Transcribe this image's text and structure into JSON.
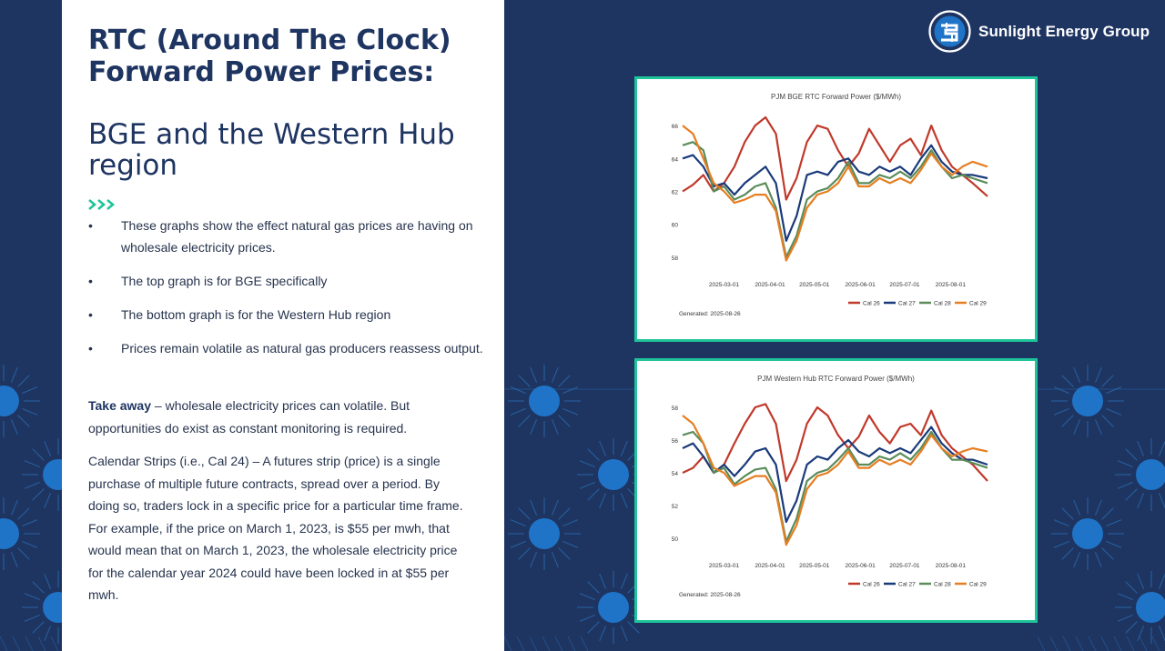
{
  "slide": {
    "title": "RTC (Around The Clock) Forward Power Prices:",
    "subtitle": "BGE and the Western Hub region",
    "bullets": [
      "These graphs show the effect natural gas prices are having on wholesale electricity prices.",
      "The top graph is for BGE specifically",
      "The bottom graph is for the Western Hub region",
      "Prices remain volatile as natural gas producers reassess output."
    ],
    "bullet_marker": "•",
    "takeaway_label": "Take away",
    "takeaway_text": " – wholesale electricity prices can volatile. But opportunities do exist as constant monitoring is required.",
    "calendar_text": "Calendar Strips (i.e., Cal 24) – A futures strip (price) is a single purchase of multiple future contracts, spread over a period. By doing so, traders lock in a specific price for a particular time frame. For example, if the price on March 1, 2023, is $55 per mwh, that would mean that on March 1, 2023, the wholesale electricity price for the calendar year 2024 could have been locked in at $55 per mwh.",
    "logo_text": "Sunlight Energy Group",
    "chevron_icon": "triple-chevron-right-icon"
  },
  "colors": {
    "navy": "#1e3461",
    "accent_green": "#20c49a",
    "pattern_blue": "#1f74c8",
    "text": "#26334d"
  },
  "chart_data": [
    {
      "type": "line",
      "title": "PJM BGE RTC Forward Power ($/MWh)",
      "x_ticks": [
        "2025-03-01",
        "2025-04-01",
        "2025-05-01",
        "2025-06-01",
        "2025-07-01",
        "2025-08-01"
      ],
      "x_range": [
        "2025-02-01",
        "2025-08-26"
      ],
      "y_ticks": [
        58,
        60,
        62,
        64,
        66
      ],
      "ylim": [
        57,
        66.5
      ],
      "grid": false,
      "legend_position": "bottom-right",
      "footer": "Generated: 2025-08-26",
      "series": [
        {
          "name": "Cal 26",
          "color": "#c0392b",
          "x": [
            "2025-02-01",
            "2025-02-08",
            "2025-02-15",
            "2025-02-22",
            "2025-03-01",
            "2025-03-08",
            "2025-03-15",
            "2025-03-22",
            "2025-03-29",
            "2025-04-05",
            "2025-04-12",
            "2025-04-19",
            "2025-04-26",
            "2025-05-03",
            "2025-05-10",
            "2025-05-17",
            "2025-05-24",
            "2025-05-31",
            "2025-06-07",
            "2025-06-14",
            "2025-06-21",
            "2025-06-28",
            "2025-07-05",
            "2025-07-12",
            "2025-07-19",
            "2025-07-26",
            "2025-08-02",
            "2025-08-09",
            "2025-08-16",
            "2025-08-26"
          ],
          "values": [
            62.0,
            62.4,
            63.0,
            62.0,
            62.5,
            63.5,
            65.0,
            66.0,
            66.5,
            65.5,
            61.5,
            62.8,
            65.0,
            66.0,
            65.8,
            64.5,
            63.5,
            64.3,
            65.8,
            64.8,
            63.8,
            64.8,
            65.2,
            64.2,
            66.0,
            64.5,
            63.5,
            63.0,
            62.5,
            61.7
          ]
        },
        {
          "name": "Cal 27",
          "color": "#1a3a7a",
          "x": [
            "2025-02-01",
            "2025-02-08",
            "2025-02-15",
            "2025-02-22",
            "2025-03-01",
            "2025-03-08",
            "2025-03-15",
            "2025-03-22",
            "2025-03-29",
            "2025-04-05",
            "2025-04-12",
            "2025-04-19",
            "2025-04-26",
            "2025-05-03",
            "2025-05-10",
            "2025-05-17",
            "2025-05-24",
            "2025-05-31",
            "2025-06-07",
            "2025-06-14",
            "2025-06-21",
            "2025-06-28",
            "2025-07-05",
            "2025-07-12",
            "2025-07-19",
            "2025-07-26",
            "2025-08-02",
            "2025-08-09",
            "2025-08-16",
            "2025-08-26"
          ],
          "values": [
            64.0,
            64.2,
            63.5,
            62.3,
            62.5,
            61.8,
            62.5,
            63.0,
            63.5,
            62.5,
            59.0,
            60.5,
            63.0,
            63.2,
            63.0,
            63.8,
            64.0,
            63.2,
            63.0,
            63.5,
            63.2,
            63.5,
            63.0,
            64.0,
            64.8,
            63.8,
            63.2,
            63.0,
            63.0,
            62.8
          ]
        },
        {
          "name": "Cal 28",
          "color": "#5b8c5a",
          "x": [
            "2025-02-01",
            "2025-02-08",
            "2025-02-15",
            "2025-02-22",
            "2025-03-01",
            "2025-03-08",
            "2025-03-15",
            "2025-03-22",
            "2025-03-29",
            "2025-04-05",
            "2025-04-12",
            "2025-04-19",
            "2025-04-26",
            "2025-05-03",
            "2025-05-10",
            "2025-05-17",
            "2025-05-24",
            "2025-05-31",
            "2025-06-07",
            "2025-06-14",
            "2025-06-21",
            "2025-06-28",
            "2025-07-05",
            "2025-07-12",
            "2025-07-19",
            "2025-07-26",
            "2025-08-02",
            "2025-08-09",
            "2025-08-16",
            "2025-08-26"
          ],
          "values": [
            64.8,
            65.0,
            64.5,
            62.0,
            62.3,
            61.5,
            61.8,
            62.3,
            62.5,
            61.0,
            58.0,
            59.3,
            61.5,
            62.0,
            62.2,
            62.8,
            63.8,
            62.5,
            62.5,
            63.0,
            62.8,
            63.2,
            62.8,
            63.5,
            64.5,
            63.5,
            62.8,
            63.0,
            62.8,
            62.5
          ]
        },
        {
          "name": "Cal 29",
          "color": "#e67e22",
          "x": [
            "2025-02-01",
            "2025-02-08",
            "2025-02-15",
            "2025-02-22",
            "2025-03-01",
            "2025-03-08",
            "2025-03-15",
            "2025-03-22",
            "2025-03-29",
            "2025-04-05",
            "2025-04-12",
            "2025-04-19",
            "2025-04-26",
            "2025-05-03",
            "2025-05-10",
            "2025-05-17",
            "2025-05-24",
            "2025-05-31",
            "2025-06-07",
            "2025-06-14",
            "2025-06-21",
            "2025-06-28",
            "2025-07-05",
            "2025-07-12",
            "2025-07-19",
            "2025-07-26",
            "2025-08-02",
            "2025-08-09",
            "2025-08-16",
            "2025-08-26"
          ],
          "values": [
            66.0,
            65.5,
            64.0,
            62.5,
            62.0,
            61.3,
            61.5,
            61.8,
            61.8,
            60.8,
            57.8,
            59.0,
            61.0,
            61.8,
            62.0,
            62.5,
            63.5,
            62.3,
            62.3,
            62.8,
            62.5,
            62.8,
            62.5,
            63.3,
            64.3,
            63.5,
            63.0,
            63.5,
            63.8,
            63.5
          ]
        }
      ]
    },
    {
      "type": "line",
      "title": "PJM Western Hub RTC Forward Power ($/MWh)",
      "x_ticks": [
        "2025-03-01",
        "2025-04-01",
        "2025-05-01",
        "2025-06-01",
        "2025-07-01",
        "2025-08-01"
      ],
      "x_range": [
        "2025-02-01",
        "2025-08-26"
      ],
      "y_ticks": [
        50,
        52,
        54,
        56,
        58
      ],
      "ylim": [
        49,
        58.5
      ],
      "grid": false,
      "legend_position": "bottom-right",
      "footer": "Generated: 2025-08-26",
      "series": [
        {
          "name": "Cal 26",
          "color": "#c0392b",
          "x": [
            "2025-02-01",
            "2025-02-08",
            "2025-02-15",
            "2025-02-22",
            "2025-03-01",
            "2025-03-08",
            "2025-03-15",
            "2025-03-22",
            "2025-03-29",
            "2025-04-05",
            "2025-04-12",
            "2025-04-19",
            "2025-04-26",
            "2025-05-03",
            "2025-05-10",
            "2025-05-17",
            "2025-05-24",
            "2025-05-31",
            "2025-06-07",
            "2025-06-14",
            "2025-06-21",
            "2025-06-28",
            "2025-07-05",
            "2025-07-12",
            "2025-07-19",
            "2025-07-26",
            "2025-08-02",
            "2025-08-09",
            "2025-08-16",
            "2025-08-26"
          ],
          "values": [
            54.0,
            54.3,
            55.0,
            54.0,
            54.5,
            55.8,
            57.0,
            58.0,
            58.2,
            57.0,
            53.5,
            54.8,
            57.0,
            58.0,
            57.5,
            56.3,
            55.5,
            56.2,
            57.5,
            56.5,
            55.8,
            56.8,
            57.0,
            56.3,
            57.8,
            56.3,
            55.5,
            55.0,
            54.5,
            53.5
          ]
        },
        {
          "name": "Cal 27",
          "color": "#1a3a7a",
          "x": [
            "2025-02-01",
            "2025-02-08",
            "2025-02-15",
            "2025-02-22",
            "2025-03-01",
            "2025-03-08",
            "2025-03-15",
            "2025-03-22",
            "2025-03-29",
            "2025-04-05",
            "2025-04-12",
            "2025-04-19",
            "2025-04-26",
            "2025-05-03",
            "2025-05-10",
            "2025-05-17",
            "2025-05-24",
            "2025-05-31",
            "2025-06-07",
            "2025-06-14",
            "2025-06-21",
            "2025-06-28",
            "2025-07-05",
            "2025-07-12",
            "2025-07-19",
            "2025-07-26",
            "2025-08-02",
            "2025-08-09",
            "2025-08-16",
            "2025-08-26"
          ],
          "values": [
            55.5,
            55.8,
            55.0,
            54.0,
            54.5,
            53.8,
            54.5,
            55.3,
            55.5,
            54.5,
            51.0,
            52.3,
            54.5,
            55.0,
            54.8,
            55.5,
            56.0,
            55.3,
            55.0,
            55.5,
            55.2,
            55.5,
            55.2,
            56.0,
            56.8,
            55.8,
            55.2,
            54.8,
            54.8,
            54.5
          ]
        },
        {
          "name": "Cal 28",
          "color": "#5b8c5a",
          "x": [
            "2025-02-01",
            "2025-02-08",
            "2025-02-15",
            "2025-02-22",
            "2025-03-01",
            "2025-03-08",
            "2025-03-15",
            "2025-03-22",
            "2025-03-29",
            "2025-04-05",
            "2025-04-12",
            "2025-04-19",
            "2025-04-26",
            "2025-05-03",
            "2025-05-10",
            "2025-05-17",
            "2025-05-24",
            "2025-05-31",
            "2025-06-07",
            "2025-06-14",
            "2025-06-21",
            "2025-06-28",
            "2025-07-05",
            "2025-07-12",
            "2025-07-19",
            "2025-07-26",
            "2025-08-02",
            "2025-08-09",
            "2025-08-16",
            "2025-08-26"
          ],
          "values": [
            56.3,
            56.5,
            55.8,
            54.0,
            54.3,
            53.3,
            53.8,
            54.2,
            54.3,
            53.0,
            49.8,
            51.2,
            53.5,
            54.0,
            54.2,
            54.8,
            55.5,
            54.5,
            54.5,
            55.0,
            54.8,
            55.2,
            54.8,
            55.5,
            56.5,
            55.5,
            54.8,
            54.8,
            54.6,
            54.3
          ]
        },
        {
          "name": "Cal 29",
          "color": "#e67e22",
          "x": [
            "2025-02-01",
            "2025-02-08",
            "2025-02-15",
            "2025-02-22",
            "2025-03-01",
            "2025-03-08",
            "2025-03-15",
            "2025-03-22",
            "2025-03-29",
            "2025-04-05",
            "2025-04-12",
            "2025-04-19",
            "2025-04-26",
            "2025-05-03",
            "2025-05-10",
            "2025-05-17",
            "2025-05-24",
            "2025-05-31",
            "2025-06-07",
            "2025-06-14",
            "2025-06-21",
            "2025-06-28",
            "2025-07-05",
            "2025-07-12",
            "2025-07-19",
            "2025-07-26",
            "2025-08-02",
            "2025-08-09",
            "2025-08-16",
            "2025-08-26"
          ],
          "values": [
            57.5,
            57.0,
            55.8,
            54.3,
            54.0,
            53.2,
            53.5,
            53.8,
            53.8,
            52.8,
            49.6,
            50.8,
            53.0,
            53.8,
            54.0,
            54.5,
            55.3,
            54.3,
            54.3,
            54.8,
            54.5,
            54.8,
            54.5,
            55.3,
            56.3,
            55.5,
            55.0,
            55.3,
            55.5,
            55.3
          ]
        }
      ]
    }
  ]
}
